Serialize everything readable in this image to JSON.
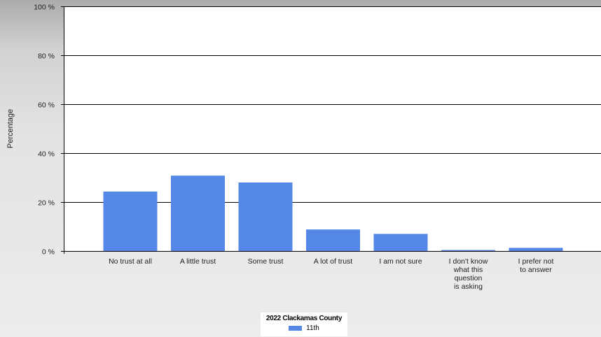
{
  "chart_data": {
    "type": "bar",
    "title": "",
    "xlabel": "",
    "ylabel": "Percentage",
    "ylim": [
      0,
      100
    ],
    "yticks": [
      "0 %",
      "20 %",
      "40 %",
      "60 %",
      "80 %",
      "100 %"
    ],
    "ytick_values": [
      0,
      20,
      40,
      60,
      80,
      100
    ],
    "categories": [
      "No trust at all",
      "A little trust",
      "Some trust",
      "A lot of trust",
      "I am not sure",
      "I don't know what this question is asking",
      "I prefer not to answer"
    ],
    "category_lines": [
      [
        "No trust at all"
      ],
      [
        "A little trust"
      ],
      [
        "Some trust"
      ],
      [
        "A lot of trust"
      ],
      [
        "I am not sure"
      ],
      [
        "I don't know",
        "what this",
        "question",
        "is asking"
      ],
      [
        "I prefer not",
        "to answer"
      ]
    ],
    "series": [
      {
        "name": "11th",
        "values": [
          24.3,
          30.8,
          28.0,
          8.8,
          7.0,
          0.4,
          1.3
        ]
      }
    ],
    "grid": true,
    "legend": {
      "title": "2022 Clackamas County",
      "placement": "bottom-center"
    },
    "colors": {
      "bar": "#5588e6",
      "plot_bg": "#ffffff",
      "grid": "#000000"
    }
  }
}
